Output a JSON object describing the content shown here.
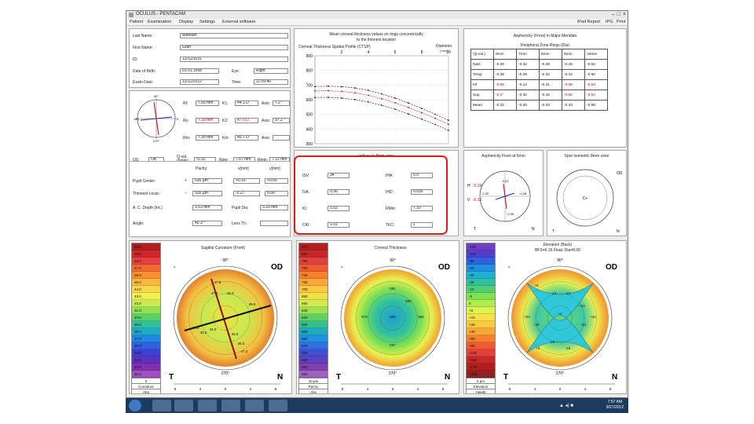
{
  "app": {
    "title": "OCULUS - PENTACAM"
  },
  "window_controls": {
    "minimize": "–",
    "maximize": "□",
    "close": "×"
  },
  "menu": {
    "left": [
      "Patient",
      "Examination",
      "Display",
      "Settings",
      "External software"
    ],
    "right": [
      "iPad Report",
      "IPG",
      "Print"
    ]
  },
  "patient": {
    "last_name_label": "Last Name:",
    "last_name": "Webster",
    "first_name_label": "First Name:",
    "first_name": "Gran",
    "id_label": "ID:",
    "id": "12/12/1191",
    "dob_label": "Date of Birth:",
    "dob": "01.01.1958",
    "eye_label": "Eye:",
    "eye": "Right",
    "exam_date_label": "Exam Date:",
    "exam_date": "12/12/2012",
    "time_label": "Time:",
    "time": "11:05:40"
  },
  "keratometry": {
    "rows": [
      {
        "l1": "Rf:",
        "v1": "7.65 mm",
        "l2": "K1:",
        "v2": "44.1 D",
        "l3": "Axis:",
        "v3": "7.2 °"
      },
      {
        "l1": "Rs:",
        "v1": "7.18 mm",
        "l2": "K2:",
        "v2": "47.0 D",
        "l3": "Axis:",
        "v3": "97.2 °"
      },
      {
        "l1": "Rm:",
        "v1": "7.35 mm",
        "l2": "Km:",
        "v2": "45.7 D",
        "l3": "Axis:",
        "v3": ""
      }
    ],
    "qs_label": "QS:",
    "qs": "OK",
    "qval_label": "Q-val. (6mm):",
    "qval": "-0.32",
    "rper_label": "Rper:",
    "rper": "7.67 mm",
    "rmin_label": "Rmin:",
    "rmin": "7.12 mm",
    "axis_top": "90°",
    "axis_bottom": "270°",
    "axis_left": "180",
    "axis_right": "0"
  },
  "pupil": {
    "headers": [
      "Pachy:",
      "x[mm]",
      "y[mm]"
    ],
    "pupil_center_label": "Pupil Center:",
    "pupil_center": [
      "536 µm",
      "+0.16",
      "+0.05"
    ],
    "thinnest_label": "Thinnest Locat.:",
    "thinnest": [
      "535 µm",
      "-0.27",
      "0.00"
    ],
    "acd_label": "A. C. Depth (Int.):",
    "acd": "2.53 mm",
    "pupil_dia_label": "Pupil Dia:",
    "pupil_dia": "3.33 mm",
    "angle_label": "Angle:",
    "angle": "40.3 °",
    "lens_th_label": "Lens Th.:",
    "lens_th": ""
  },
  "graph": {
    "title_line1": "Mean corneal thickness values on rings concentrically",
    "title_line2": "to the thinnest location",
    "inner_title": "Corneal Thickness Spatial Profile (CTSP)",
    "x_label": "Diameter",
    "x_unit": "[ mm ]",
    "x_ticks": [
      "2",
      "4",
      "6",
      "8",
      "10"
    ],
    "y_ticks": [
      "900",
      "800",
      "700",
      "600",
      "500",
      "400",
      "300"
    ]
  },
  "chart_data": {
    "type": "line",
    "title": "Corneal Thickness Spatial Profile (CTSP)",
    "xlabel": "Diameter [ mm ]",
    "ylabel": "",
    "xlim": [
      0,
      10
    ],
    "ylim": [
      300,
      900
    ],
    "series": [
      {
        "values_x": [
          0,
          1,
          2,
          3,
          4,
          5,
          6,
          7,
          8,
          9,
          10
        ],
        "values": [
          535,
          537,
          541,
          549,
          561,
          577,
          598,
          623,
          651,
          684,
          720
        ]
      },
      {
        "values_x": [
          0,
          1,
          2,
          3,
          4,
          5,
          6,
          7,
          8,
          9,
          10
        ],
        "values": [
          690,
          692,
          689,
          680,
          664,
          640,
          611,
          578,
          541,
          501,
          460
        ]
      },
      {
        "values_x": [
          0,
          1,
          2,
          3,
          4,
          5,
          6,
          7,
          8,
          9,
          10
        ],
        "values": [
          660,
          661,
          657,
          647,
          630,
          607,
          579,
          547,
          511,
          473,
          432
        ]
      },
      {
        "values_x": [
          0,
          1,
          2,
          3,
          4,
          5,
          6,
          7,
          8,
          9,
          10
        ],
        "values": [
          615,
          616,
          611,
          601,
          585,
          562,
          535,
          503,
          468,
          431,
          392
        ]
      }
    ]
  },
  "asphericity": {
    "title": "Asphericity (Front) in Major Meridian",
    "rings_title": "Peripheral Zone Rings (Dia)",
    "headers": [
      "(Q-val.)",
      "6mm",
      "7mm",
      "8mm",
      "9mm",
      "10mm"
    ],
    "rows": [
      [
        "Nasl",
        "-0.28",
        "-0.32",
        "-0.38",
        "-0.45",
        "-0.53"
      ],
      [
        "Temp",
        "-0.26",
        "-0.29",
        "-0.34",
        "-0.42",
        "-0.50"
      ],
      [
        "Inf",
        "-0.05",
        "-0.12",
        "-0.21",
        "-0.35",
        "-0.53"
      ],
      [
        "Sup",
        "-0.2°",
        "-0.32",
        "-0.42",
        "-0.52",
        "-0.64"
      ],
      [
        "Mean",
        "-0.22",
        "-0.26",
        "-0.34",
        "-0.43",
        "-0.56"
      ]
    ]
  },
  "indices": {
    "title": "Indices in 8mm zone",
    "rows": [
      {
        "l": "ISV:",
        "v": "34",
        "r": "IHA:",
        "rv": "5.5"
      },
      {
        "l": "IVA:",
        "v": "0.36",
        "r": "IHD:",
        "rv": "0.030"
      },
      {
        "l": "KI:",
        "v": "1.02",
        "r": "RMin:",
        "rv": "7.10"
      },
      {
        "l": "CKI:",
        "v": "1.01",
        "r": "TKC:",
        "rv": "1"
      }
    ]
  },
  "aberration": {
    "title": "Asphericity Front at 6mm",
    "h_label": "H",
    "h_val": "-0.19",
    "v_label": "V",
    "v_val": "-0.16",
    "t_label": "T",
    "n_label": "N",
    "top_val": "-0.22",
    "left_val": "-0.32",
    "right_val": "-0.28",
    "bottom_val": "-0.05"
  },
  "topo_small": {
    "title": "Spot Isometric 8mm zone",
    "od": "OD",
    "t_label": "T",
    "n_label": "N",
    "center": "C+"
  },
  "maps": [
    {
      "title": "Sagittal Curvature (Front)",
      "subtitle": "",
      "od": "OD",
      "t": "T",
      "n": "N",
      "top": "90°",
      "bottom": "270°",
      "scale": [
        "50.0",
        "49.0",
        "48.0",
        "47.0",
        "46.0",
        "45.0",
        "44.0",
        "43.0",
        "42.0",
        "41.0",
        "40.0",
        "39.0",
        "38.0",
        "37.0",
        "36.0",
        "35.0",
        "34.0",
        "33.0",
        "32.0"
      ],
      "scale_foot": [
        "0",
        "Curvature",
        "Abs"
      ],
      "x_ticks": [
        "8",
        "4",
        "0",
        "4",
        "8"
      ],
      "labels": [
        "47.5",
        "47.0",
        "46.0",
        "45.5",
        "44.0",
        "43.5",
        "44.0",
        "45.5",
        "46.0",
        "47.0"
      ]
    },
    {
      "title": "Corneal Thickness",
      "subtitle": "",
      "od": "OD",
      "t": "T",
      "n": "N",
      "top": "90°",
      "bottom": "270°",
      "scale": [
        "820",
        "800",
        "780",
        "760",
        "740",
        "720",
        "700",
        "680",
        "660",
        "640",
        "620",
        "600",
        "580",
        "560",
        "540",
        "520",
        "500",
        "480",
        "460"
      ],
      "scale_foot": [
        "10 µm",
        "Pachy",
        "Abs"
      ],
      "x_ticks": [
        "8",
        "4",
        "0",
        "4",
        "8"
      ],
      "labels": [
        "591",
        "570",
        "560",
        "536",
        "567",
        "580"
      ]
    },
    {
      "title": "Elevation (Back)",
      "subtitle": "BFS=6.16 Float, Dia=8.00",
      "od": "OD",
      "t": "T",
      "n": "N",
      "top": "90°",
      "bottom": "270°",
      "scale": [
        "-150",
        "-120",
        "-90",
        "-60",
        "-40",
        "-25",
        "-10",
        "-5",
        "0",
        "+5",
        "+10",
        "+25",
        "+40",
        "+60",
        "+90",
        "+120",
        "+150",
        "+175",
        "+200"
      ],
      "scale_foot": [
        "2 µm",
        "Elevation",
        "Height"
      ],
      "x_ticks": [
        "8",
        "4",
        "0",
        "4",
        "8"
      ],
      "labels": [
        "+8",
        "-12",
        "-12",
        "+4",
        "+24",
        "+25",
        "+24",
        "+21",
        "+8",
        "-16",
        "-15",
        "+14"
      ]
    }
  ],
  "taskbar": {
    "time": "7:57 AM",
    "date": "9/27/2012",
    "tray": "▲  ◂)  ■"
  }
}
